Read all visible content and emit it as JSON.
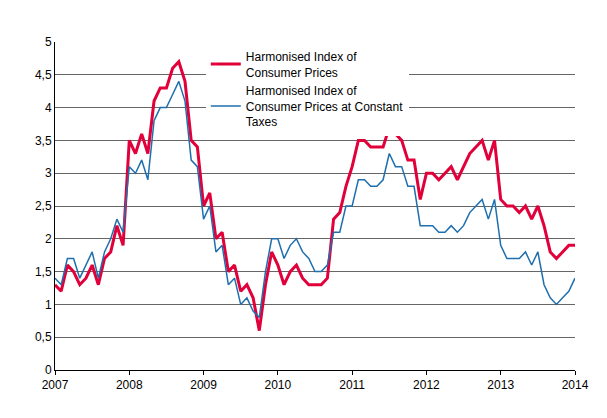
{
  "chart_data": {
    "type": "line",
    "categories": [
      "2007",
      null,
      null,
      null,
      null,
      null,
      null,
      null,
      null,
      null,
      null,
      null,
      "2008",
      null,
      null,
      null,
      null,
      null,
      null,
      null,
      null,
      null,
      null,
      null,
      "2009",
      null,
      null,
      null,
      null,
      null,
      null,
      null,
      null,
      null,
      null,
      null,
      "2010",
      null,
      null,
      null,
      null,
      null,
      null,
      null,
      null,
      null,
      null,
      null,
      "2011",
      null,
      null,
      null,
      null,
      null,
      null,
      null,
      null,
      null,
      null,
      null,
      "2012",
      null,
      null,
      null,
      null,
      null,
      null,
      null,
      null,
      null,
      null,
      null,
      "2013",
      null,
      null,
      null,
      null,
      null,
      null,
      null,
      null,
      null,
      null,
      null,
      "2014"
    ],
    "series": [
      {
        "name": "Harmonised Index of Consumer Prices",
        "color": "#e2003a",
        "values": [
          1.3,
          1.2,
          1.6,
          1.5,
          1.3,
          1.4,
          1.6,
          1.3,
          1.7,
          1.8,
          2.2,
          1.9,
          3.5,
          3.3,
          3.6,
          3.3,
          4.1,
          4.3,
          4.3,
          4.6,
          4.7,
          4.4,
          3.5,
          3.4,
          2.5,
          2.7,
          2.0,
          2.1,
          1.5,
          1.6,
          1.2,
          1.3,
          1.1,
          0.6,
          1.3,
          1.8,
          1.6,
          1.3,
          1.5,
          1.6,
          1.4,
          1.3,
          1.3,
          1.3,
          1.4,
          2.3,
          2.4,
          2.8,
          3.1,
          3.5,
          3.5,
          3.4,
          3.4,
          3.4,
          3.7,
          3.6,
          3.5,
          3.2,
          3.2,
          2.6,
          3.0,
          3.0,
          2.9,
          3.0,
          3.1,
          2.9,
          3.1,
          3.3,
          3.4,
          3.5,
          3.2,
          3.5,
          2.6,
          2.5,
          2.5,
          2.4,
          2.5,
          2.3,
          2.5,
          2.2,
          1.8,
          1.7,
          1.8,
          1.9,
          1.9
        ]
      },
      {
        "name": "Harmonised Index of Consumer Prices at Constant Taxes",
        "color": "#1f6fae",
        "values": [
          1.4,
          1.3,
          1.7,
          1.7,
          1.4,
          1.6,
          1.8,
          1.4,
          1.8,
          2.0,
          2.3,
          2.1,
          3.1,
          3.0,
          3.2,
          2.9,
          3.8,
          4.0,
          4.0,
          4.2,
          4.4,
          4.1,
          3.2,
          3.1,
          2.3,
          2.5,
          1.8,
          1.9,
          1.3,
          1.4,
          1.0,
          1.1,
          0.9,
          0.8,
          1.5,
          2.0,
          2.0,
          1.7,
          1.9,
          2.0,
          1.8,
          1.7,
          1.5,
          1.5,
          1.6,
          2.1,
          2.1,
          2.5,
          2.5,
          2.9,
          2.9,
          2.8,
          2.8,
          2.9,
          3.3,
          3.1,
          3.1,
          2.8,
          2.8,
          2.2,
          2.2,
          2.2,
          2.1,
          2.1,
          2.2,
          2.1,
          2.2,
          2.4,
          2.5,
          2.6,
          2.3,
          2.6,
          1.9,
          1.7,
          1.7,
          1.7,
          1.8,
          1.6,
          1.8,
          1.3,
          1.1,
          1.0,
          1.1,
          1.2,
          1.4
        ]
      }
    ],
    "ylim": [
      0,
      5
    ],
    "yticks": [
      0,
      {
        "value": 0.5,
        "label": "0,5"
      },
      1,
      {
        "value": 1.5,
        "label": "1,5"
      },
      2,
      {
        "value": 2.5,
        "label": "2,5"
      },
      3,
      {
        "value": 3.5,
        "label": "3,5"
      },
      4,
      {
        "value": 4.5,
        "label": "4,5"
      },
      5
    ],
    "grid": true,
    "legend": "top"
  }
}
